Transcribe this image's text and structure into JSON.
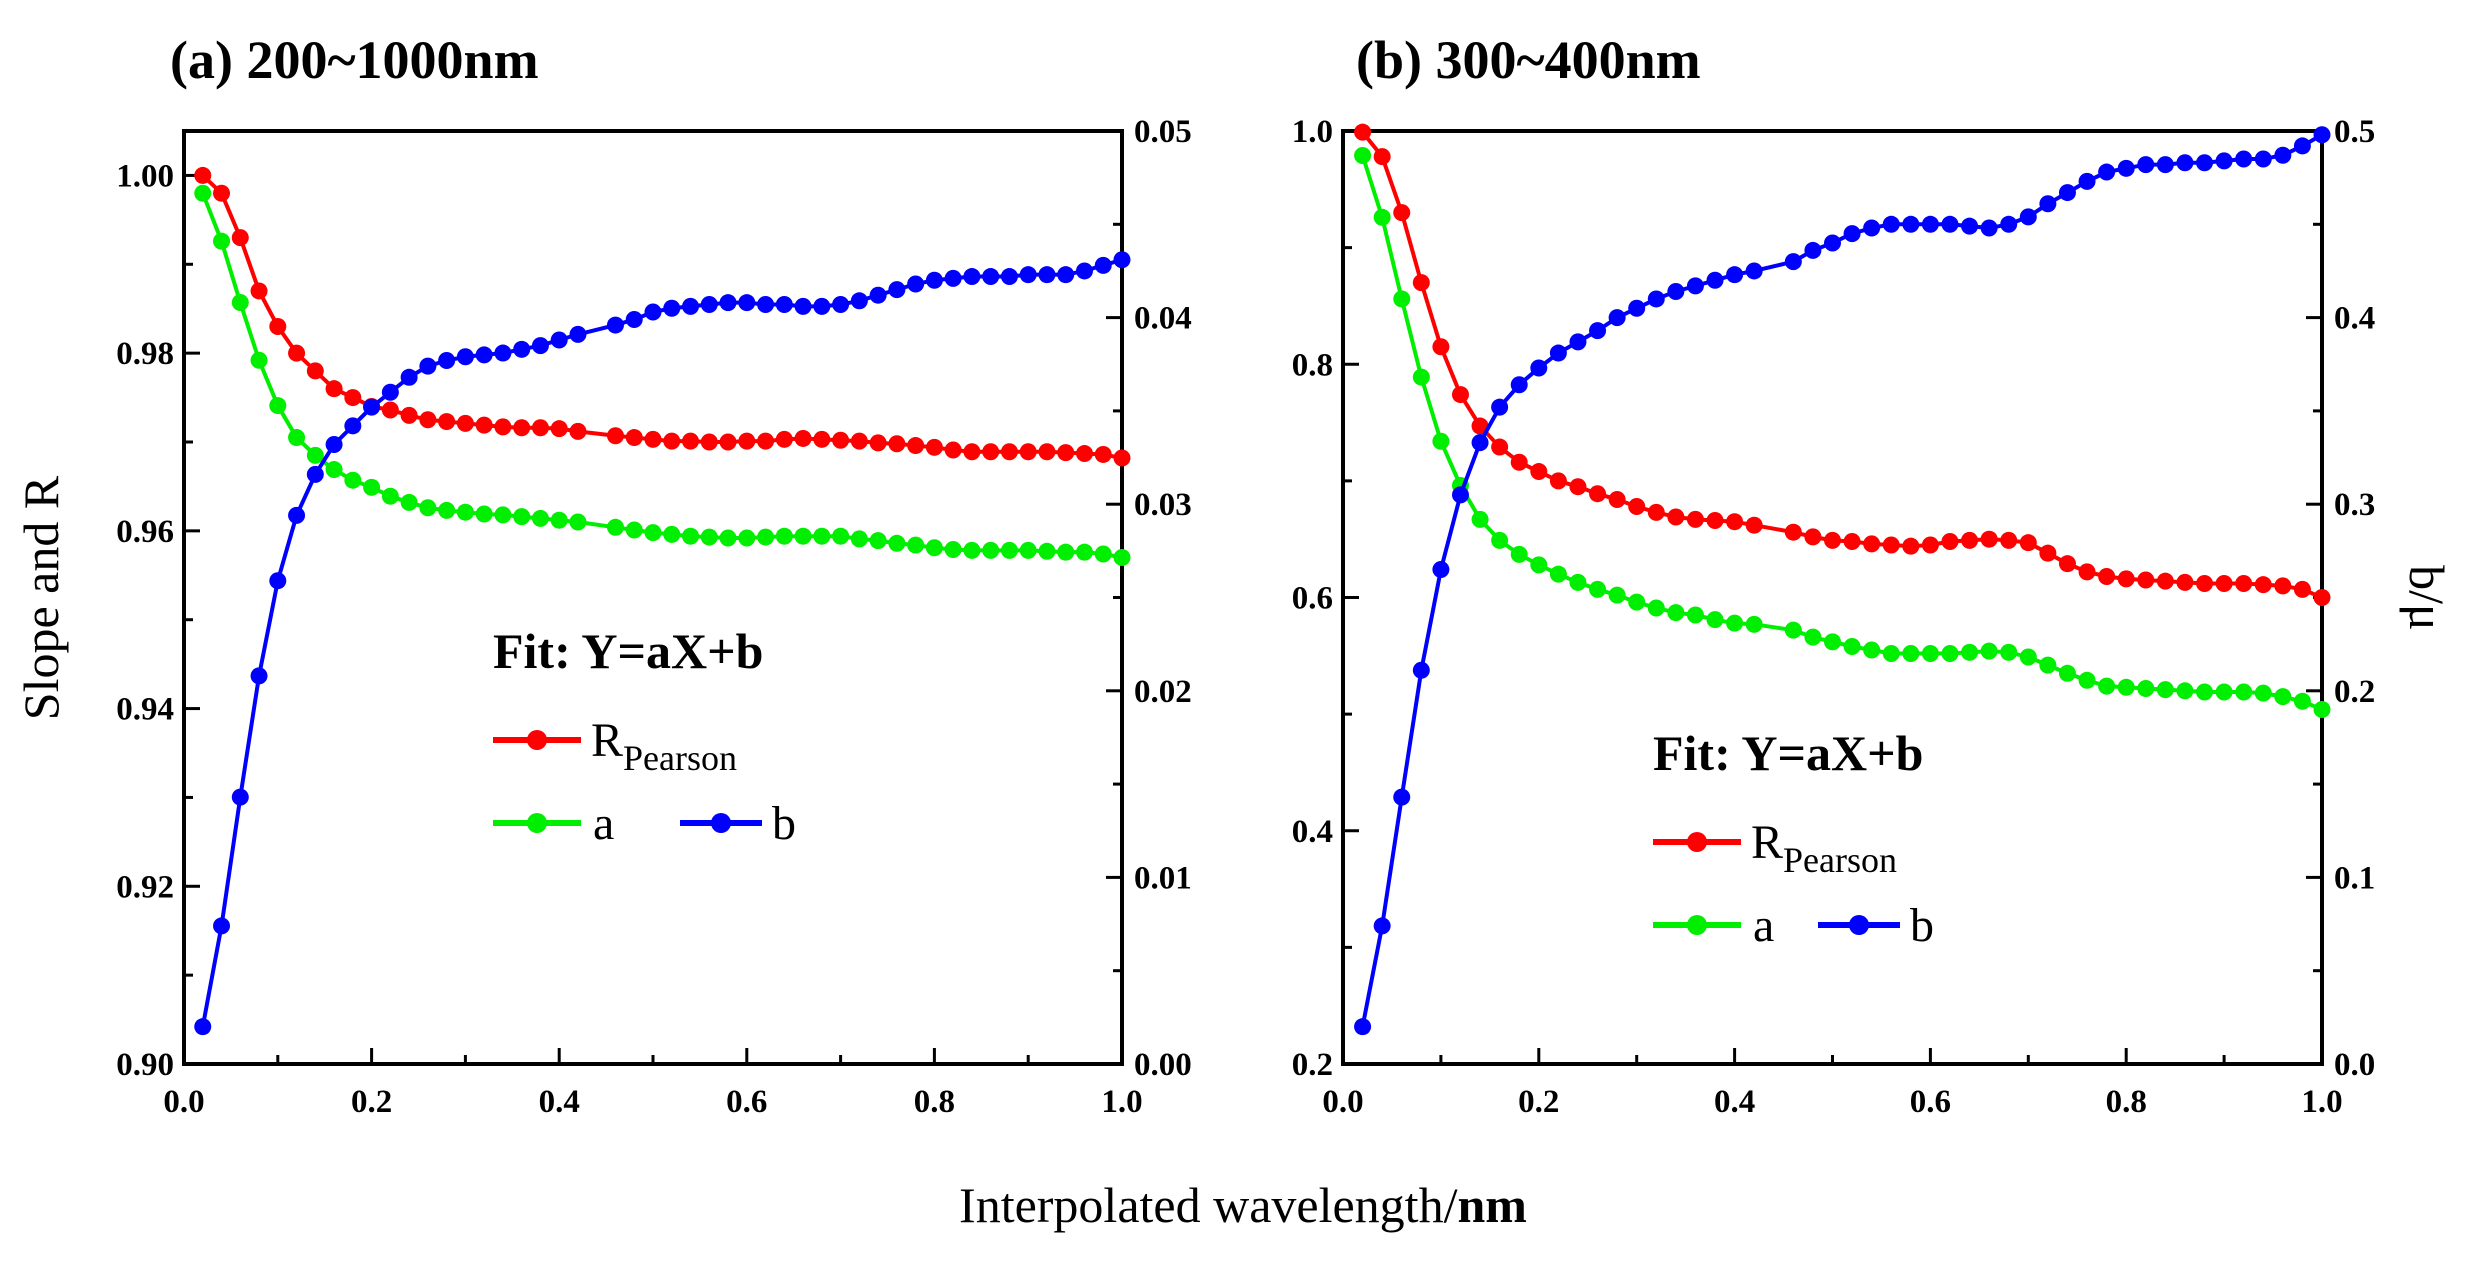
{
  "chart_data": [
    {
      "type": "line",
      "title": "(a) 200~1000nm",
      "xlabel": "Interpolated wavelength/nm",
      "ylabel": "Slope and R",
      "y2label": "",
      "xlim": [
        0,
        1.0
      ],
      "ylim": [
        0.9,
        1.005
      ],
      "y2lim": [
        0,
        0.05
      ],
      "xticks": [
        "0.0",
        "0.2",
        "0.4",
        "0.6",
        "0.8",
        "1.0"
      ],
      "yticks": [
        "0.90",
        "0.92",
        "0.94",
        "0.96",
        "0.98",
        "1.00"
      ],
      "y2ticks": [
        "0.00",
        "0.01",
        "0.02",
        "0.03",
        "0.04",
        "0.05"
      ],
      "legend": {
        "title": "Fit: Y=aX+b",
        "r_main": "R",
        "r_sub": "Pearson",
        "a": "a",
        "b": "b"
      },
      "x": [
        0.02,
        0.04,
        0.06,
        0.08,
        0.1,
        0.12,
        0.14,
        0.16,
        0.18,
        0.2,
        0.22,
        0.24,
        0.26,
        0.28,
        0.3,
        0.32,
        0.34,
        0.36,
        0.38,
        0.4,
        0.42,
        0.46,
        0.48,
        0.5,
        0.52,
        0.54,
        0.56,
        0.58,
        0.6,
        0.62,
        0.64,
        0.66,
        0.68,
        0.7,
        0.72,
        0.74,
        0.76,
        0.78,
        0.8,
        0.82,
        0.84,
        0.86,
        0.88,
        0.9,
        0.92,
        0.94,
        0.96,
        0.98,
        1.0
      ],
      "series": [
        {
          "name": "R_Pearson",
          "axis": "left",
          "color": "#ff0000",
          "values": [
            1.0,
            0.998,
            0.993,
            0.987,
            0.983,
            0.98,
            0.978,
            0.976,
            0.975,
            0.974,
            0.9736,
            0.973,
            0.9725,
            0.9723,
            0.9721,
            0.9719,
            0.9717,
            0.9716,
            0.9716,
            0.9715,
            0.9712,
            0.9707,
            0.9705,
            0.9703,
            0.9701,
            0.9701,
            0.97,
            0.97,
            0.9701,
            0.9701,
            0.9703,
            0.9704,
            0.9703,
            0.9702,
            0.9701,
            0.9699,
            0.9698,
            0.9696,
            0.9694,
            0.9691,
            0.9689,
            0.9689,
            0.9689,
            0.9689,
            0.9689,
            0.9688,
            0.9687,
            0.9686,
            0.9682
          ]
        },
        {
          "name": "a",
          "axis": "left",
          "color": "#00ee00",
          "values": [
            0.998,
            0.9926,
            0.9857,
            0.9792,
            0.9741,
            0.9705,
            0.9685,
            0.9669,
            0.9657,
            0.9649,
            0.9639,
            0.9632,
            0.9626,
            0.9623,
            0.9621,
            0.9619,
            0.9618,
            0.9616,
            0.9614,
            0.9612,
            0.961,
            0.9604,
            0.9601,
            0.9598,
            0.9596,
            0.9594,
            0.9593,
            0.9592,
            0.9592,
            0.9593,
            0.9594,
            0.9594,
            0.9594,
            0.9594,
            0.9591,
            0.9589,
            0.9586,
            0.9584,
            0.9581,
            0.9579,
            0.9578,
            0.9578,
            0.9578,
            0.9578,
            0.9577,
            0.9576,
            0.9576,
            0.9574,
            0.957
          ]
        },
        {
          "name": "b",
          "axis": "right",
          "color": "#0000ff",
          "values": [
            0.002,
            0.0074,
            0.0143,
            0.0208,
            0.0259,
            0.0294,
            0.0316,
            0.0332,
            0.0342,
            0.0352,
            0.036,
            0.0368,
            0.0374,
            0.0377,
            0.0379,
            0.038,
            0.0381,
            0.0383,
            0.0385,
            0.0388,
            0.0391,
            0.0396,
            0.0399,
            0.0403,
            0.0405,
            0.0406,
            0.0407,
            0.0408,
            0.0408,
            0.0407,
            0.0407,
            0.0406,
            0.0406,
            0.0407,
            0.0409,
            0.0412,
            0.0415,
            0.0418,
            0.042,
            0.0421,
            0.0422,
            0.0422,
            0.0422,
            0.0423,
            0.0423,
            0.0423,
            0.0425,
            0.0428,
            0.0431
          ]
        }
      ]
    },
    {
      "type": "line",
      "title": "(b) 300~400nm",
      "xlabel": "Interpolated wavelength/nm",
      "ylabel": "",
      "y2label": "b/μ",
      "xlim": [
        0,
        1.0
      ],
      "ylim": [
        0.2,
        1.0
      ],
      "y2lim": [
        0,
        0.5
      ],
      "xticks": [
        "0.0",
        "0.2",
        "0.4",
        "0.6",
        "0.8",
        "1.0"
      ],
      "yticks": [
        "0.2",
        "0.4",
        "0.6",
        "0.8",
        "1.0"
      ],
      "y2ticks": [
        "0.0",
        "0.1",
        "0.2",
        "0.3",
        "0.4",
        "0.5"
      ],
      "legend": {
        "title": "Fit: Y=aX+b",
        "r_main": "R",
        "r_sub": "Pearson",
        "a": "a",
        "b": "b"
      },
      "x": [
        0.02,
        0.04,
        0.06,
        0.08,
        0.1,
        0.12,
        0.14,
        0.16,
        0.18,
        0.2,
        0.22,
        0.24,
        0.26,
        0.28,
        0.3,
        0.32,
        0.34,
        0.36,
        0.38,
        0.4,
        0.42,
        0.46,
        0.48,
        0.5,
        0.52,
        0.54,
        0.56,
        0.58,
        0.6,
        0.62,
        0.64,
        0.66,
        0.68,
        0.7,
        0.72,
        0.74,
        0.76,
        0.78,
        0.8,
        0.82,
        0.84,
        0.86,
        0.88,
        0.9,
        0.92,
        0.94,
        0.96,
        0.98,
        1.0
      ],
      "series": [
        {
          "name": "R_Pearson",
          "axis": "left",
          "color": "#ff0000",
          "values": [
            0.999,
            0.978,
            0.93,
            0.87,
            0.815,
            0.774,
            0.747,
            0.729,
            0.716,
            0.708,
            0.7,
            0.695,
            0.689,
            0.684,
            0.678,
            0.673,
            0.669,
            0.667,
            0.666,
            0.665,
            0.662,
            0.656,
            0.652,
            0.649,
            0.648,
            0.646,
            0.645,
            0.644,
            0.645,
            0.648,
            0.649,
            0.65,
            0.649,
            0.647,
            0.638,
            0.629,
            0.622,
            0.618,
            0.616,
            0.615,
            0.614,
            0.613,
            0.612,
            0.612,
            0.612,
            0.611,
            0.61,
            0.607,
            0.6
          ]
        },
        {
          "name": "a",
          "axis": "left",
          "color": "#00ee00",
          "values": [
            0.979,
            0.926,
            0.856,
            0.789,
            0.734,
            0.696,
            0.667,
            0.649,
            0.637,
            0.628,
            0.62,
            0.613,
            0.607,
            0.602,
            0.596,
            0.591,
            0.587,
            0.585,
            0.581,
            0.578,
            0.577,
            0.572,
            0.566,
            0.562,
            0.558,
            0.555,
            0.552,
            0.552,
            0.552,
            0.552,
            0.553,
            0.554,
            0.553,
            0.549,
            0.542,
            0.535,
            0.529,
            0.524,
            0.523,
            0.522,
            0.521,
            0.52,
            0.519,
            0.519,
            0.519,
            0.518,
            0.515,
            0.511,
            0.504
          ]
        },
        {
          "name": "b",
          "axis": "right",
          "color": "#0000ff",
          "values": [
            0.02,
            0.074,
            0.143,
            0.211,
            0.265,
            0.305,
            0.333,
            0.352,
            0.364,
            0.373,
            0.381,
            0.387,
            0.393,
            0.4,
            0.405,
            0.41,
            0.414,
            0.417,
            0.42,
            0.423,
            0.425,
            0.43,
            0.436,
            0.44,
            0.445,
            0.448,
            0.45,
            0.45,
            0.45,
            0.45,
            0.449,
            0.448,
            0.45,
            0.454,
            0.461,
            0.467,
            0.473,
            0.478,
            0.48,
            0.482,
            0.482,
            0.483,
            0.483,
            0.484,
            0.485,
            0.485,
            0.487,
            0.492,
            0.498
          ]
        }
      ]
    }
  ]
}
